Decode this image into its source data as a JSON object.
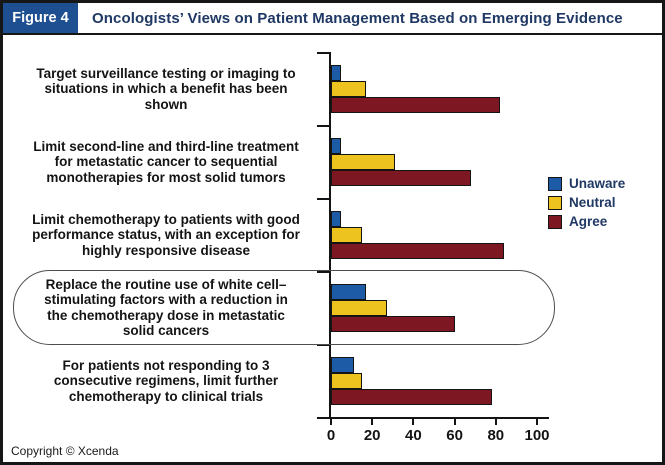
{
  "header": {
    "figure_label": "Figure 4",
    "title": "Oncologists’ Views on Patient Management Based on Emerging Evidence"
  },
  "footer": {
    "copyright": "Copyright © Xcenda"
  },
  "chart_data": {
    "type": "bar",
    "orientation": "horizontal",
    "title": "Oncologists’ Views on Patient Management Based on Emerging Evidence",
    "categories": [
      "Target surveillance testing or imaging to\nsituations in which a benefit has been\nshown",
      "Limit second-line and third-line treatment\nfor metastatic cancer to sequential\nmonotherapies for most solid tumors",
      "Limit chemotherapy to patients with good\nperformance status, with an exception for\nhighly responsive disease",
      "Replace the routine use of white cell–\nstimulating factors with a reduction in\nthe chemotherapy dose in metastatic\nsolid cancers",
      "For patients not responding to 3\nconsecutive regimens, limit further\nchemotherapy to clinical trials"
    ],
    "series": [
      {
        "name": "Unaware",
        "color": "#1e5ba6",
        "values": [
          4,
          4,
          4,
          16,
          10
        ]
      },
      {
        "name": "Neutral",
        "color": "#edc41f",
        "values": [
          16,
          30,
          14,
          26,
          14
        ]
      },
      {
        "name": "Agree",
        "color": "#7d1721",
        "values": [
          81,
          67,
          83,
          59,
          77
        ]
      }
    ],
    "xlabel": "",
    "ylabel": "",
    "xlim": [
      0,
      100
    ],
    "x_ticks": [
      0,
      20,
      40,
      60,
      80,
      100
    ],
    "grid": false,
    "legend_position": "right",
    "annotations": {
      "highlighted_category_index": 3,
      "highlight_style": "rounded-outline"
    }
  }
}
